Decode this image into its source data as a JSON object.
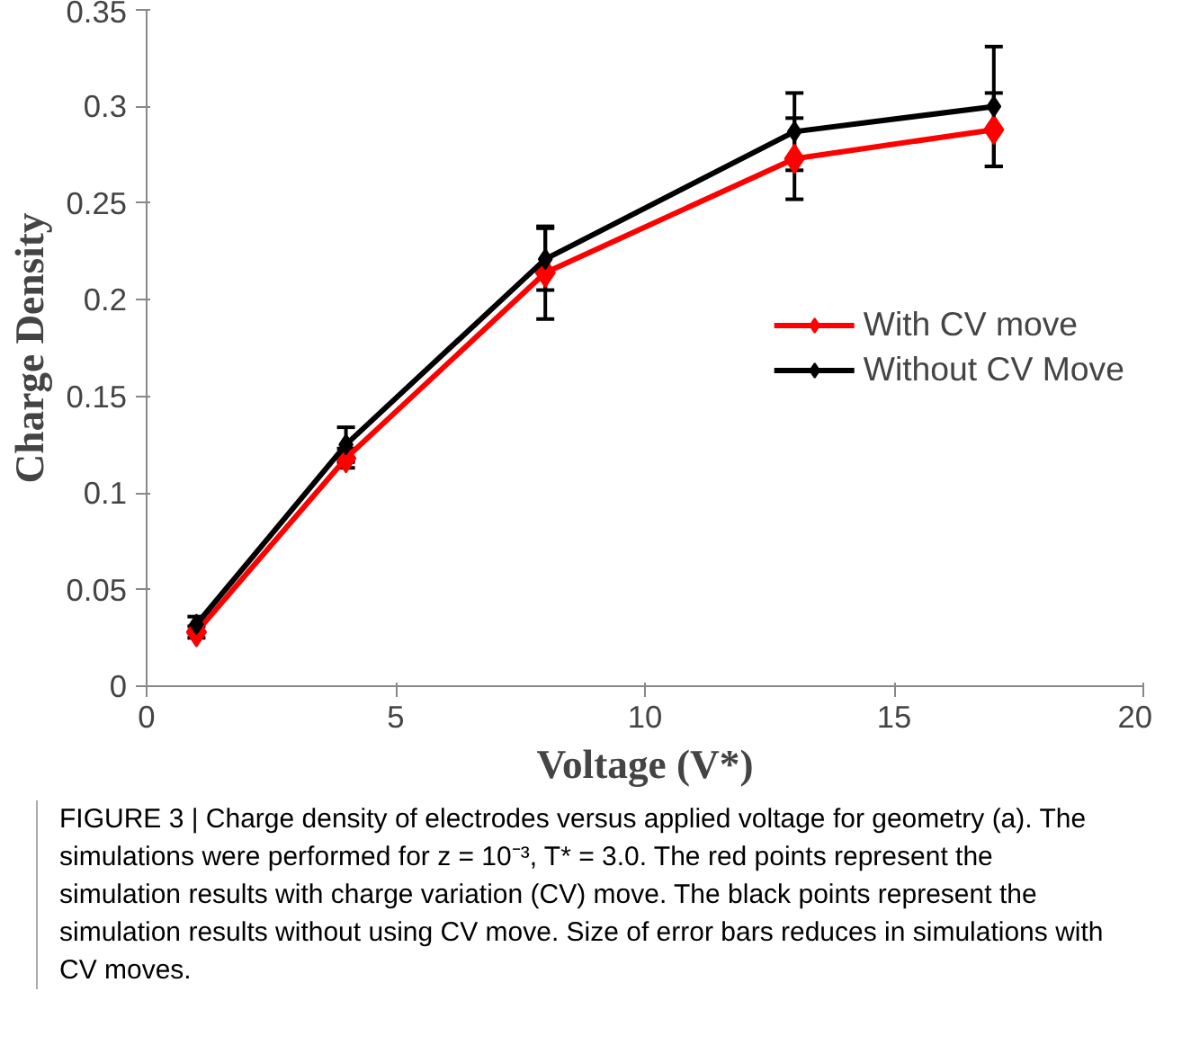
{
  "chart_data": {
    "type": "line",
    "xlabel": "Voltage (V*)",
    "ylabel": "Charge Density",
    "x": [
      1,
      4,
      8,
      13,
      17
    ],
    "series": [
      {
        "name": "With CV move",
        "color": "#ff0000",
        "values": [
          0.028,
          0.118,
          0.214,
          0.273,
          0.288
        ],
        "errors": [
          0.003,
          0.005,
          0.024,
          0.021,
          0.019
        ]
      },
      {
        "name": "Without CV Move",
        "color": "#000000",
        "values": [
          0.032,
          0.125,
          0.221,
          0.287,
          0.3
        ],
        "errors": [
          0.004,
          0.009,
          0.016,
          0.02,
          0.031
        ]
      }
    ],
    "xlim": [
      0,
      20
    ],
    "xticks": [
      0,
      5,
      10,
      15,
      20
    ],
    "ylim": [
      0,
      0.35
    ],
    "yticks": [
      0,
      0.05,
      0.1,
      0.15,
      0.2,
      0.25,
      0.3,
      0.35
    ],
    "grid": false,
    "legend": "right",
    "marker": "diamond",
    "line_style": "solid",
    "annotations": [
      "FIGURE 3 | Charge density of electrodes versus applied voltage for geometry (a). The simulations were performed for z = 10⁻³, T* = 3.0. The red points represent the simulation results with charge variation (CV) move. The black points represent the simulation results without using CV move. Size of error bars reduces in simulations with CV moves."
    ]
  }
}
